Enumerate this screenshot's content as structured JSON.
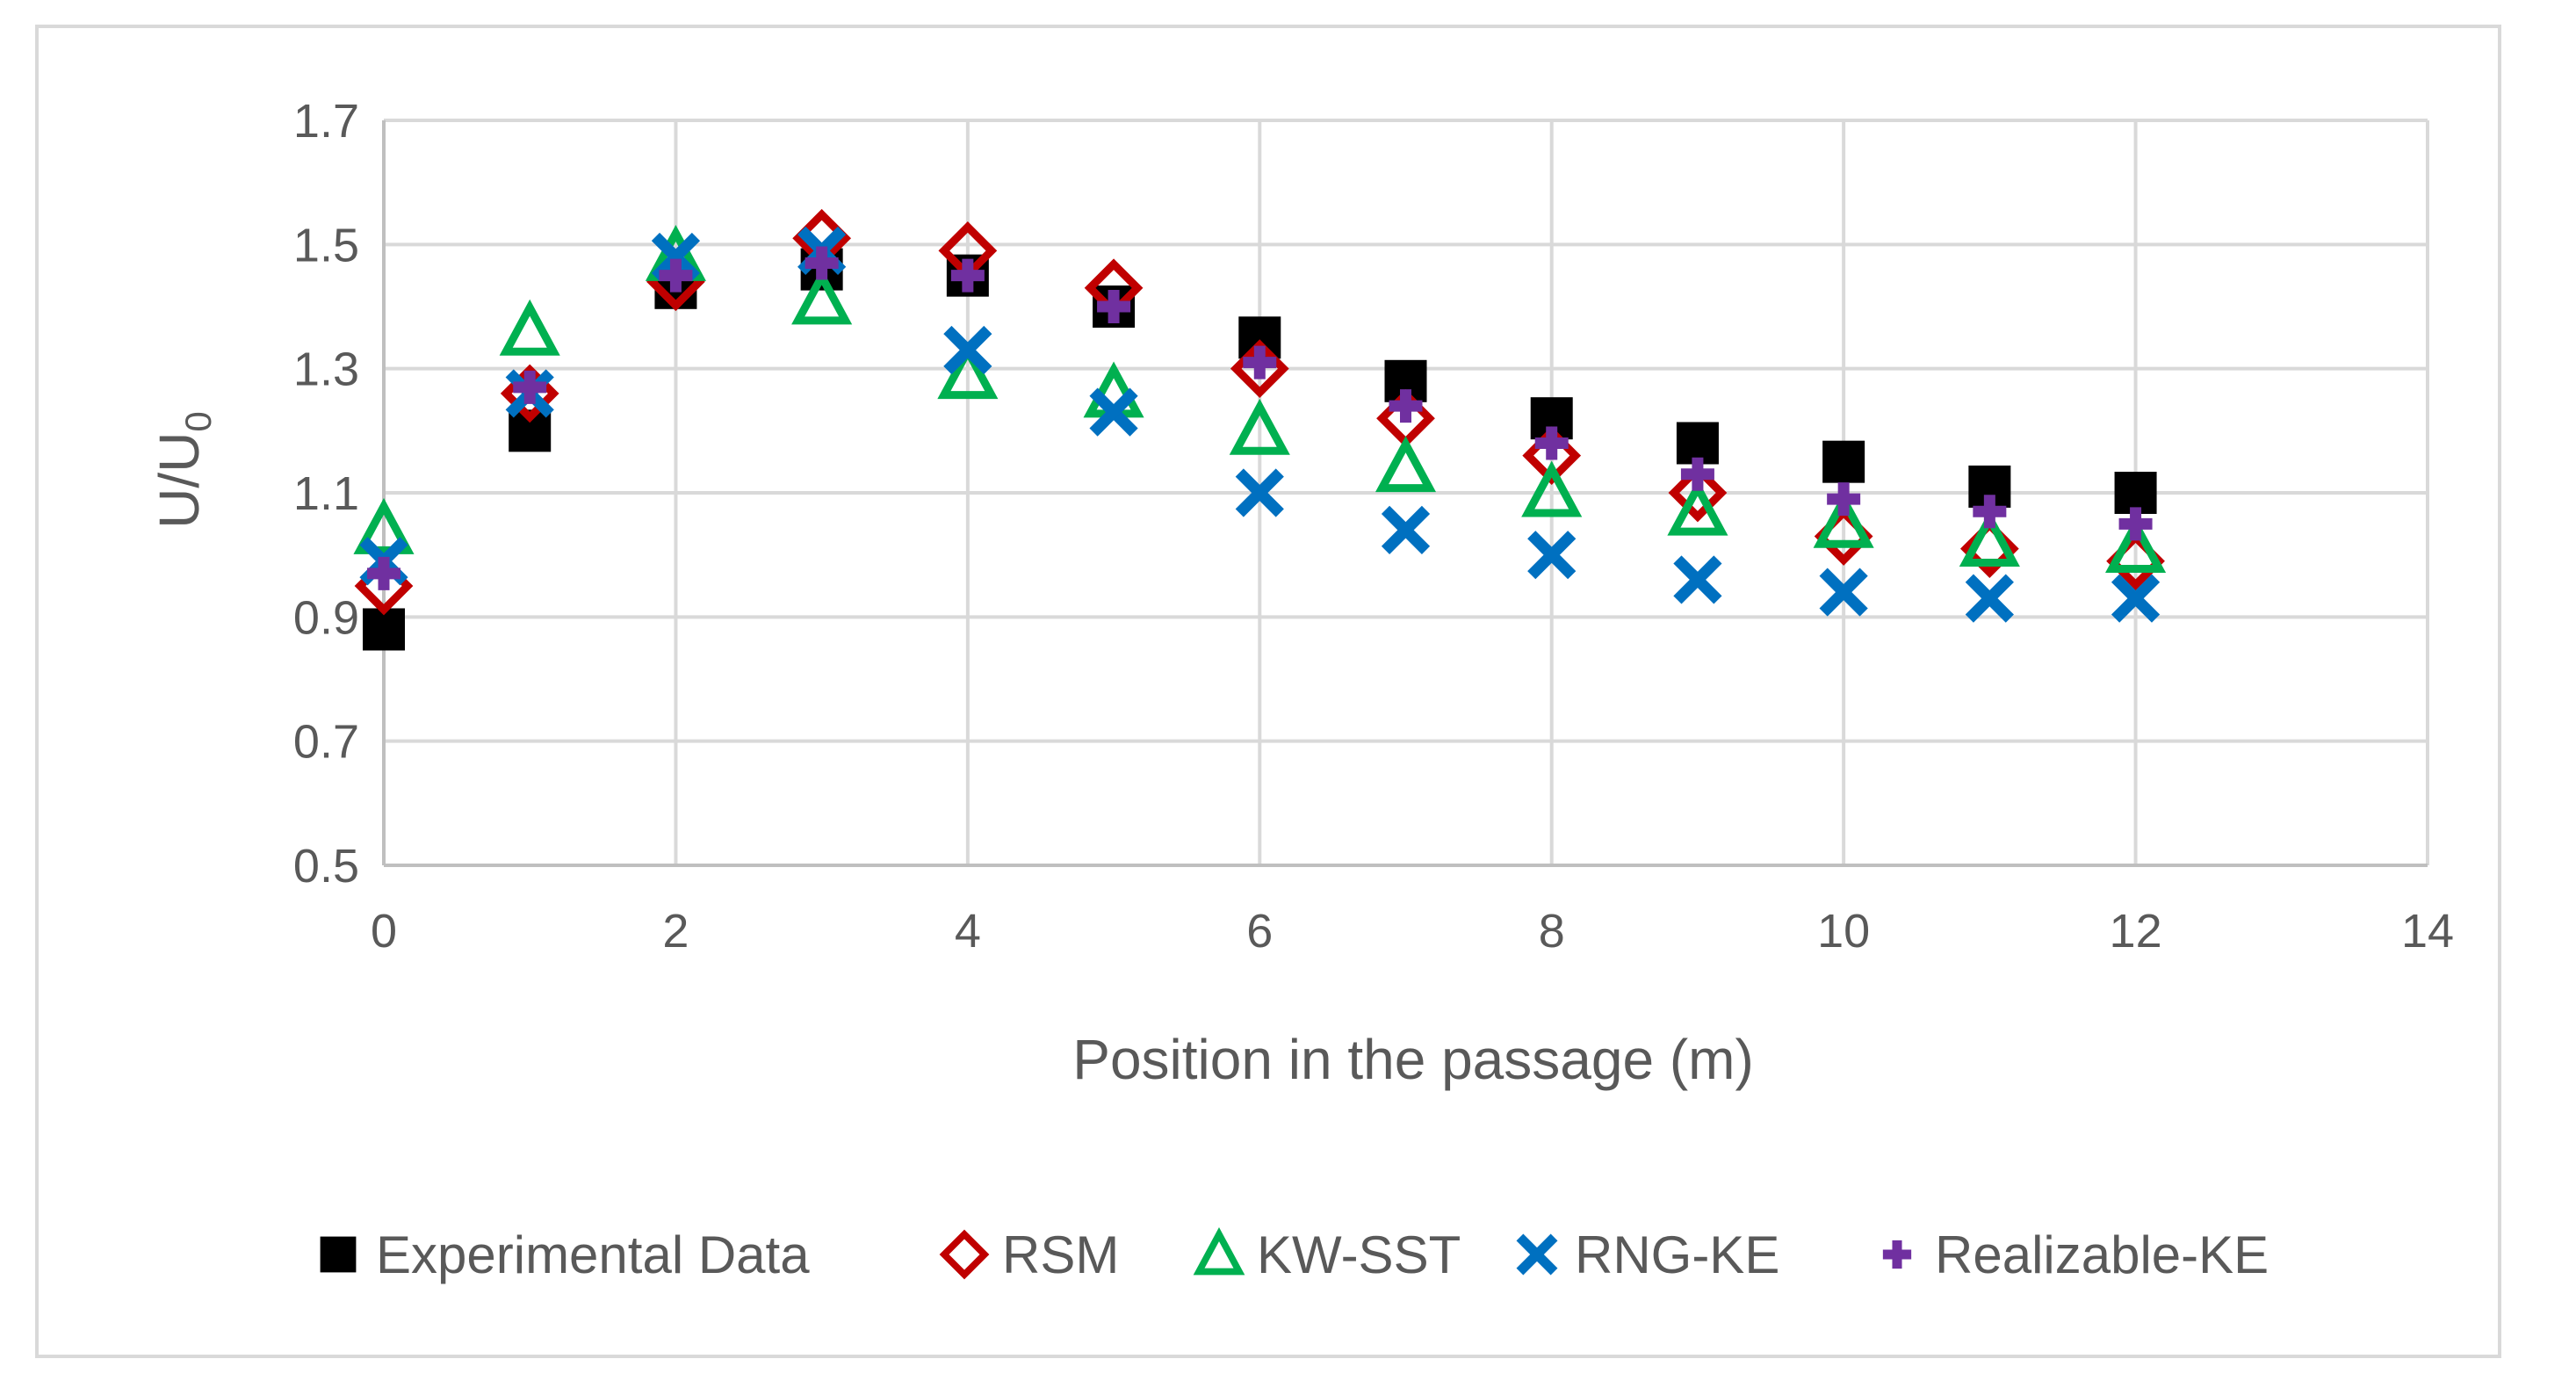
{
  "chart_data": {
    "type": "scatter",
    "title": "",
    "xlabel": "Position in the passage (m)",
    "ylabel": "U/U",
    "ylabel_subscript": "0",
    "xlim": [
      0,
      14
    ],
    "ylim": [
      0.5,
      1.7
    ],
    "xticks": [
      0,
      2,
      4,
      6,
      8,
      10,
      12,
      14
    ],
    "yticks": [
      0.5,
      0.7,
      0.9,
      1.1,
      1.3,
      1.5,
      1.7
    ],
    "ytick_labels": [
      "0.5",
      "0.7",
      "0.9",
      "1.1",
      "1.3",
      "1.5",
      "1.7"
    ],
    "grid": true,
    "legend_position": "bottom",
    "x": [
      0,
      1,
      2,
      3,
      4,
      5,
      6,
      7,
      8,
      9,
      10,
      11,
      12
    ],
    "series": [
      {
        "name": "Experimental Data",
        "marker": "square",
        "color": "#000000",
        "values": [
          0.88,
          1.2,
          1.43,
          1.46,
          1.45,
          1.4,
          1.35,
          1.28,
          1.22,
          1.18,
          1.15,
          1.11,
          1.1
        ]
      },
      {
        "name": "RSM",
        "marker": "diamond",
        "color": "#c00000",
        "values": [
          0.95,
          1.26,
          1.44,
          1.51,
          1.49,
          1.43,
          1.3,
          1.22,
          1.16,
          1.1,
          1.03,
          1.01,
          0.99
        ]
      },
      {
        "name": "KW-SST",
        "marker": "triangle",
        "color": "#00b050",
        "values": [
          1.04,
          1.36,
          1.48,
          1.41,
          1.29,
          1.26,
          1.2,
          1.14,
          1.1,
          1.07,
          1.05,
          1.02,
          1.01
        ]
      },
      {
        "name": "RNG-KE",
        "marker": "x",
        "color": "#0070c0",
        "values": [
          0.99,
          1.26,
          1.48,
          1.49,
          1.33,
          1.23,
          1.1,
          1.04,
          1.0,
          0.96,
          0.94,
          0.93,
          0.93
        ]
      },
      {
        "name": "Realizable-KE",
        "marker": "plus",
        "color": "#7030a0",
        "values": [
          0.97,
          1.27,
          1.45,
          1.47,
          1.45,
          1.4,
          1.31,
          1.24,
          1.18,
          1.13,
          1.09,
          1.07,
          1.05
        ]
      }
    ]
  }
}
